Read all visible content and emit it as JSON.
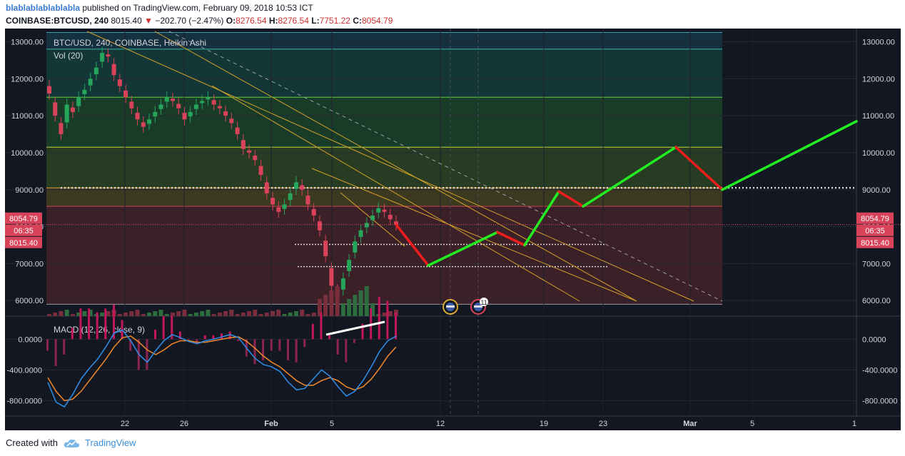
{
  "header": {
    "user": "blablablablablabla",
    "published": "published on TradingView.com, February 09, 2018 10:53 ICT",
    "symbol": "COINBASE:BTCUSD, 240",
    "last": "8015.40",
    "arrow": "▼",
    "change": "−202.70 (−2.47%)",
    "o_label": "O:",
    "o": "8276.54",
    "h_label": "H:",
    "h": "8276.54",
    "l_label": "L:",
    "l": "7751.22",
    "c_label": "C:",
    "c": "8054.79"
  },
  "footer": {
    "created": "Created with",
    "brand": "TradingView"
  },
  "colors": {
    "background": "#131722",
    "up": "#26a65b",
    "down": "#d9435a",
    "projection_up": "#22ee22",
    "projection_down": "#ee1c1c",
    "macd_line": "#2e8fe8",
    "signal_line": "#f08a2a",
    "trendline": "#d4a12a"
  },
  "chart_data": [
    {
      "type": "candlestick",
      "title": "BTC/USD, 240, COINBASE, Heikin Ashi",
      "volume_label": "Vol (20)",
      "x_ticks": [
        "22",
        "26",
        "Feb",
        "5",
        "12",
        "19",
        "23",
        "Mar",
        "5",
        "1"
      ],
      "y_ticks": [
        "6000.00",
        "7000.00",
        "8000.00",
        "9000.00",
        "10000.00",
        "11000.00",
        "12000.00",
        "13000.00"
      ],
      "ylim": [
        5580,
        13280
      ],
      "price_labels": {
        "close": "8054.79",
        "countdown": "06:35",
        "last": "8015.40"
      },
      "series": [
        {
          "name": "BTC/USD",
          "values": [
            11600,
            11000,
            10500,
            11300,
            11100,
            11500,
            11700,
            12000,
            12300,
            12700,
            12600,
            12100,
            11800,
            11500,
            11200,
            10900,
            10700,
            10900,
            11100,
            11300,
            11500,
            11400,
            11200,
            10900,
            11100,
            11300,
            11400,
            11500,
            11300,
            11200,
            11000,
            10800,
            10500,
            10100,
            10000,
            9800,
            9400,
            8900,
            8600,
            8400,
            8600,
            8900,
            9200,
            9000,
            8600,
            8300,
            7900,
            7200,
            6400,
            6100,
            6600,
            7100,
            7600,
            7900,
            8100,
            8300,
            8500,
            8400,
            8200,
            8054.79
          ]
        }
      ],
      "fib_levels": [
        13250,
        12800,
        11500,
        10150,
        9050,
        8550,
        5900
      ],
      "horizontal_levels": [
        {
          "value": 9050,
          "style": "dotted"
        },
        {
          "value": 7520,
          "style": "dotted"
        },
        {
          "value": 6920,
          "style": "dotted"
        }
      ],
      "projection": [
        {
          "date": "Feb 9",
          "price": 8054.79
        },
        {
          "date": "Feb 11",
          "price": 6950
        },
        {
          "date": "Feb 16",
          "price": 7850
        },
        {
          "date": "Feb 18",
          "price": 7500
        },
        {
          "date": "Feb 20",
          "price": 8950
        },
        {
          "date": "Feb 22",
          "price": 8550
        },
        {
          "date": "Feb 28",
          "price": 10150
        },
        {
          "date": "Mar 3",
          "price": 9000
        },
        {
          "date": "Mar 11",
          "price": 10850
        }
      ],
      "grid": true
    },
    {
      "type": "line",
      "title": "MACD (12, 26, close, 9)",
      "y_ticks": [
        "0.0000",
        "-400.0000",
        "-800.0000"
      ],
      "ylim": [
        -1000,
        300
      ],
      "series": [
        {
          "name": "MACD",
          "values": [
            -560,
            -820,
            -880,
            -720,
            -520,
            -380,
            -260,
            -100,
            80,
            120,
            -20,
            -200,
            -300,
            -150,
            -20,
            60,
            20,
            -30,
            -60,
            -20,
            0,
            30,
            60,
            20,
            -120,
            -250,
            -330,
            -360,
            -420,
            -560,
            -660,
            -640,
            -520,
            -400,
            -480,
            -620,
            -740,
            -680,
            -540,
            -360,
            -160,
            -20,
            40
          ]
        },
        {
          "name": "Signal",
          "values": [
            -500,
            -680,
            -800,
            -780,
            -680,
            -540,
            -400,
            -260,
            -100,
            20,
            40,
            -40,
            -140,
            -200,
            -140,
            -60,
            -20,
            -20,
            -40,
            -40,
            -20,
            0,
            20,
            30,
            -30,
            -120,
            -220,
            -300,
            -360,
            -450,
            -540,
            -600,
            -600,
            -540,
            -500,
            -540,
            -620,
            -660,
            -620,
            -520,
            -380,
            -220,
            -100
          ]
        }
      ],
      "grid": true
    }
  ]
}
